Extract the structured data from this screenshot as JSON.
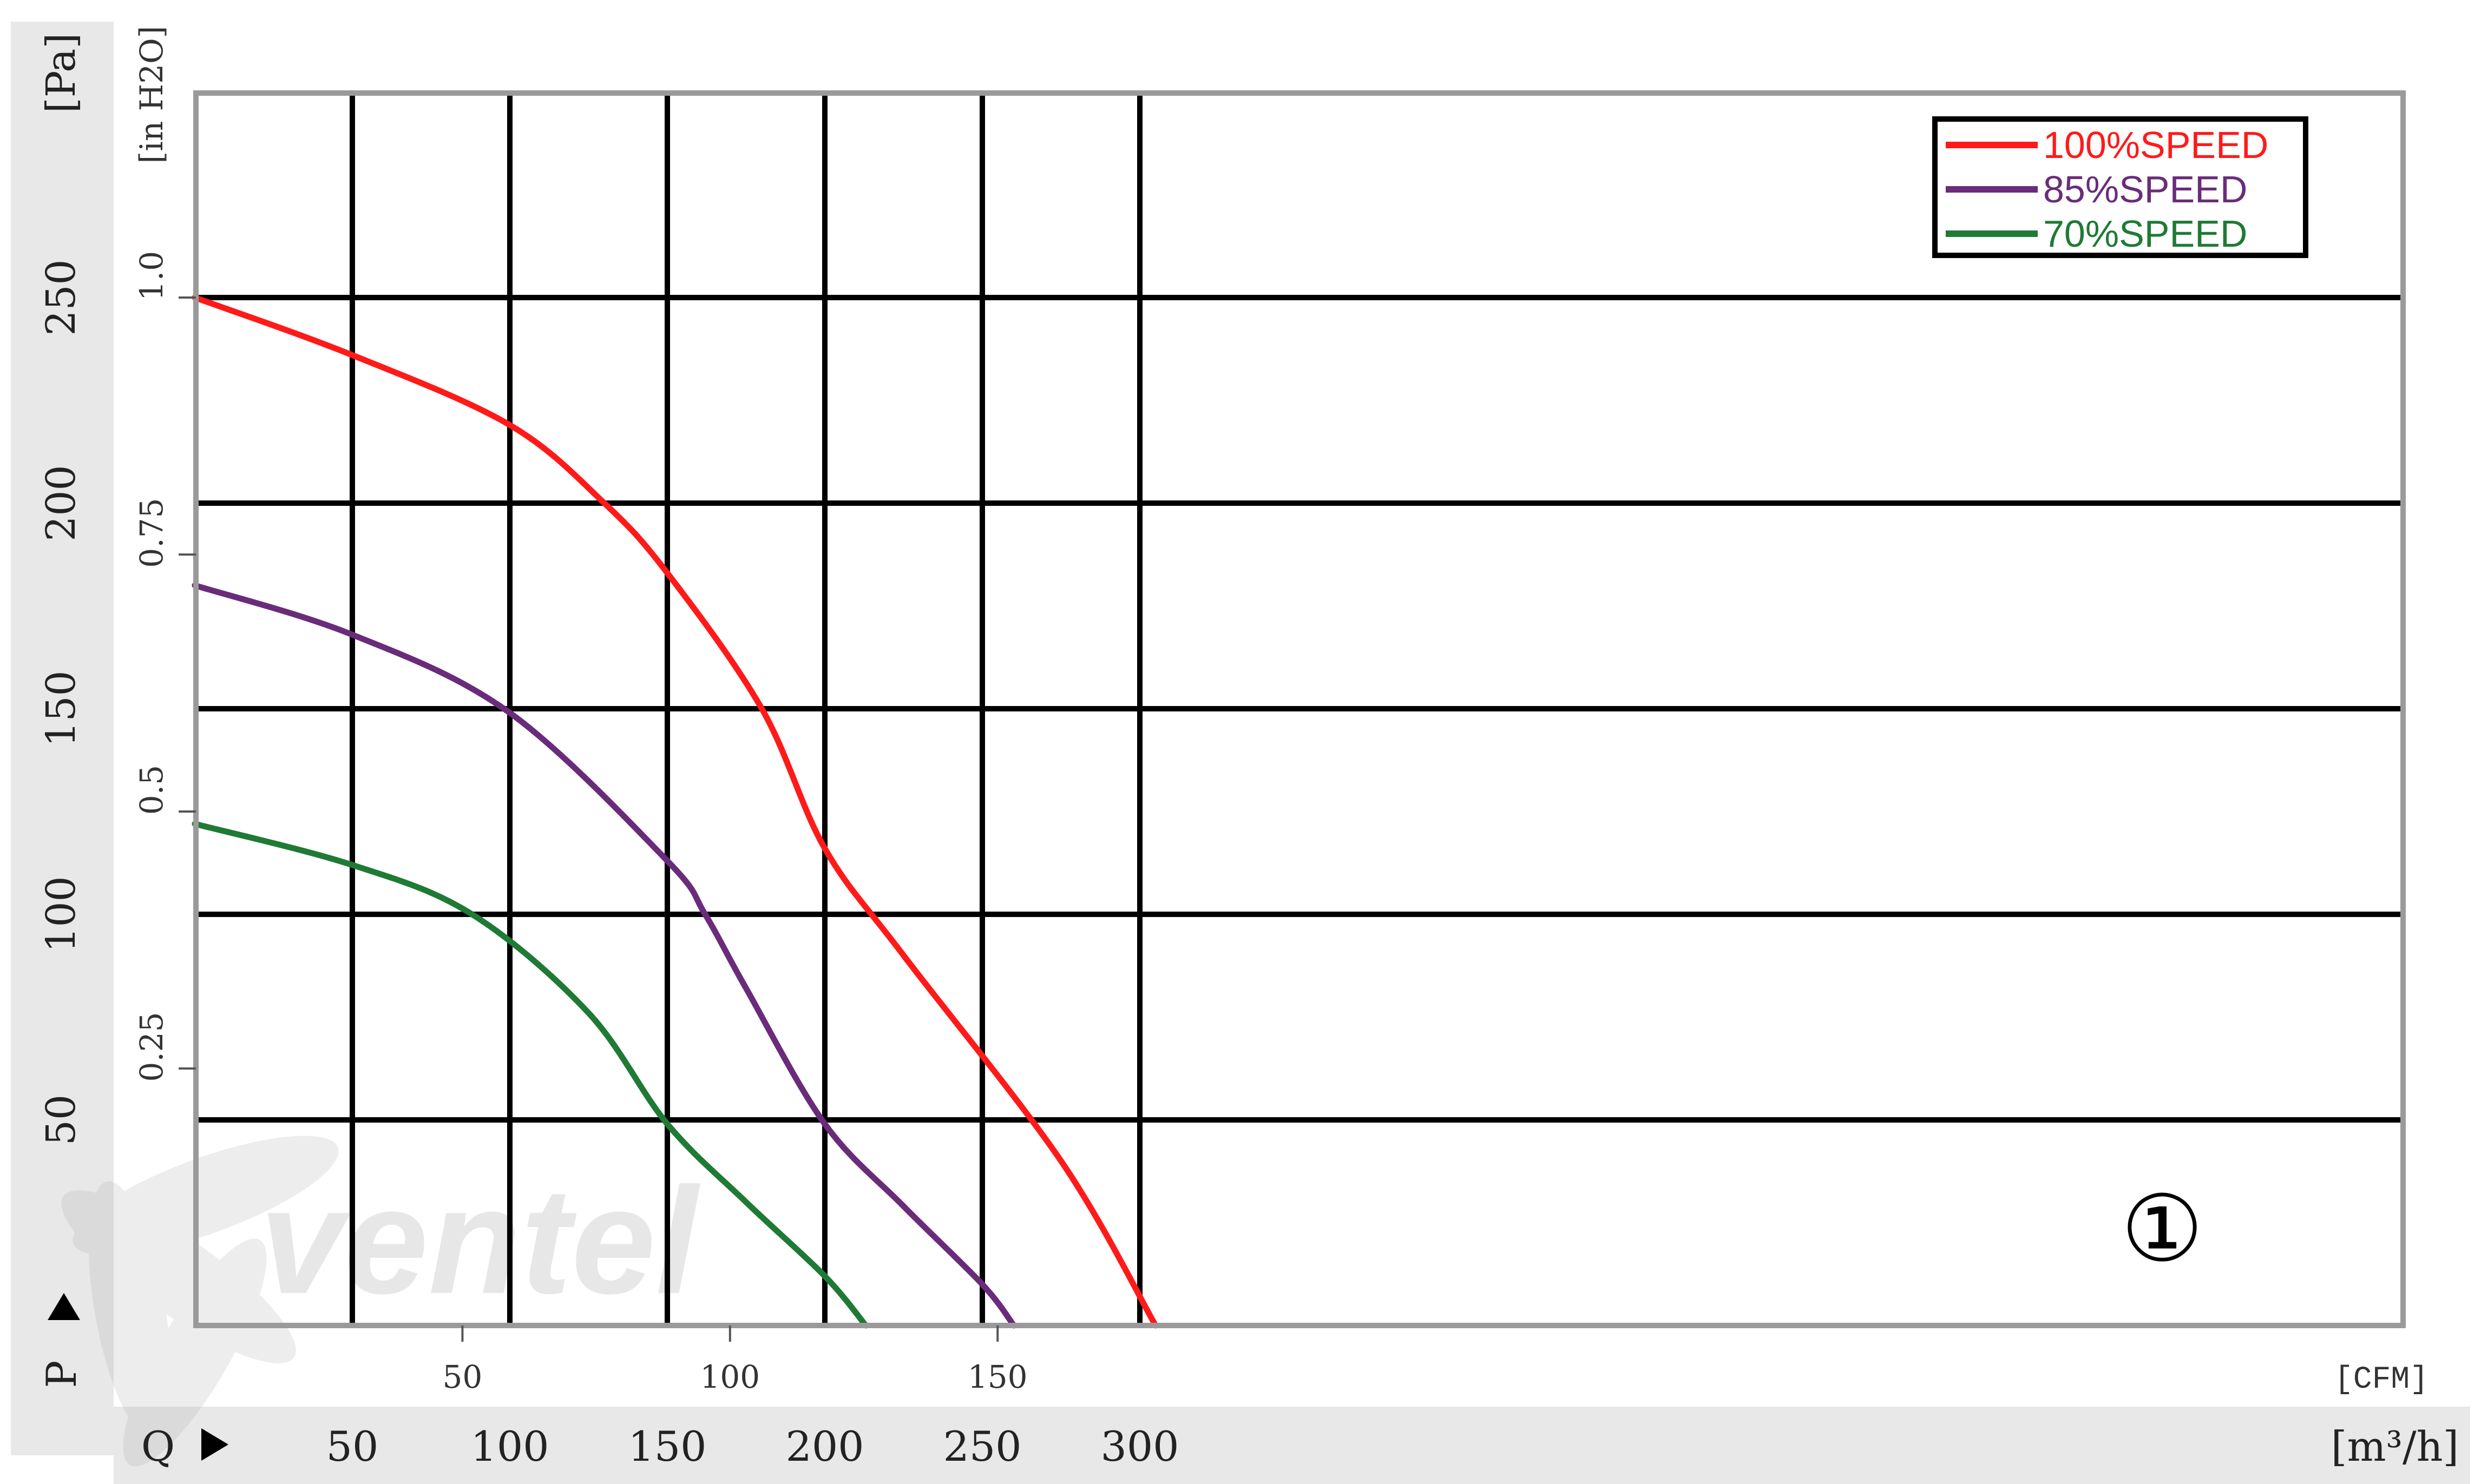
{
  "chart_data": {
    "type": "line",
    "title": "",
    "xlabel": "Q",
    "ylabel": "P",
    "x_unit": "[m³/h]",
    "y_unit": "[Pa]",
    "x_secondary_unit": "[CFM]",
    "y_secondary_unit": "[in H2O]",
    "xlim": [
      0,
      350
    ],
    "ylim": [
      0,
      250
    ],
    "x_ticks": [
      "50",
      "100",
      "150",
      "200",
      "250",
      "300"
    ],
    "y_ticks": [
      "50",
      "100",
      "150",
      "200",
      "250"
    ],
    "x_secondary_ticks": [
      "50",
      "100",
      "150"
    ],
    "y_secondary_ticks": [
      "0.25",
      "0.5",
      "0.75",
      "1.0"
    ],
    "grid": true,
    "legend_position": "top-right",
    "curve_marker": "①",
    "watermark": "ventel",
    "series": [
      {
        "name": "100%SPEED",
        "color": "#ff1a1a",
        "points": [
          [
            0,
            250
          ],
          [
            50,
            236
          ],
          [
            100,
            219
          ],
          [
            130,
            200
          ],
          [
            150,
            183
          ],
          [
            180,
            150
          ],
          [
            200,
            116
          ],
          [
            225,
            90
          ],
          [
            275,
            40
          ],
          [
            305,
            0
          ]
        ]
      },
      {
        "name": "85%SPEED",
        "color": "#6a2c7a",
        "points": [
          [
            0,
            180
          ],
          [
            50,
            168
          ],
          [
            100,
            149
          ],
          [
            150,
            113
          ],
          [
            162,
            100
          ],
          [
            175,
            82
          ],
          [
            200,
            49
          ],
          [
            225,
            29
          ],
          [
            250,
            10
          ],
          [
            260,
            0
          ]
        ]
      },
      {
        "name": "70%SPEED",
        "color": "#1f7a35",
        "points": [
          [
            0,
            122
          ],
          [
            50,
            112
          ],
          [
            88,
            100
          ],
          [
            125,
            76
          ],
          [
            150,
            49
          ],
          [
            175,
            30
          ],
          [
            200,
            12
          ],
          [
            213,
            0
          ]
        ]
      }
    ]
  }
}
